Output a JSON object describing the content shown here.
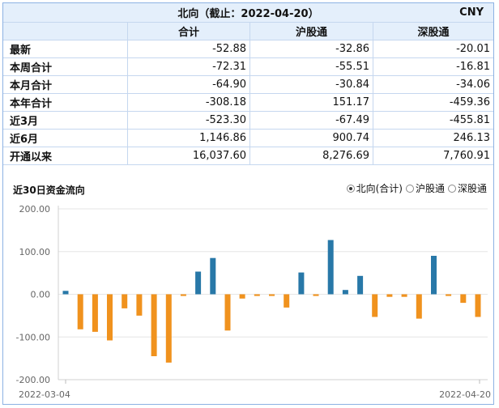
{
  "table": {
    "title": "北向（截止：2022-04-20）",
    "currency": "CNY",
    "headers": [
      "合计",
      "沪股通",
      "深股通"
    ],
    "rows": [
      {
        "label": "最新",
        "values": [
          "-52.88",
          "-32.86",
          "-20.01"
        ]
      },
      {
        "label": "本周合计",
        "values": [
          "-72.31",
          "-55.51",
          "-16.81"
        ]
      },
      {
        "label": "本月合计",
        "values": [
          "-64.90",
          "-30.84",
          "-34.06"
        ]
      },
      {
        "label": "本年合计",
        "values": [
          "-308.18",
          "151.17",
          "-459.36"
        ]
      },
      {
        "label": "近3月",
        "values": [
          "-523.30",
          "-67.49",
          "-455.81"
        ]
      },
      {
        "label": "近6月",
        "values": [
          "1,146.86",
          "900.74",
          "246.13"
        ]
      },
      {
        "label": "开通以来",
        "values": [
          "16,037.60",
          "8,276.69",
          "7,760.91"
        ]
      }
    ]
  },
  "legend": [
    {
      "label": "北向(合计)",
      "selected": true
    },
    {
      "label": "沪股通",
      "selected": false
    },
    {
      "label": "深股通",
      "selected": false
    }
  ],
  "chart_data": {
    "type": "bar",
    "title": "近30日资金流向",
    "x_start_label": "2022-03-04",
    "x_end_label": "2022-04-20",
    "ylim": [
      -200,
      200
    ],
    "yticks": [
      "200.00",
      "100.00",
      "0.00",
      "-100.00",
      "-200.00"
    ],
    "grid": true,
    "colors": {
      "positive": "#2878a8",
      "negative": "#f0921e"
    },
    "values": [
      8,
      -82,
      -88,
      -108,
      -33,
      -50,
      -145,
      -160,
      -4,
      53,
      85,
      -85,
      -10,
      -4,
      -4,
      -31,
      51,
      -4,
      127,
      10,
      43,
      -53,
      -6,
      -6,
      -57,
      90,
      -4,
      -20,
      -53
    ]
  }
}
